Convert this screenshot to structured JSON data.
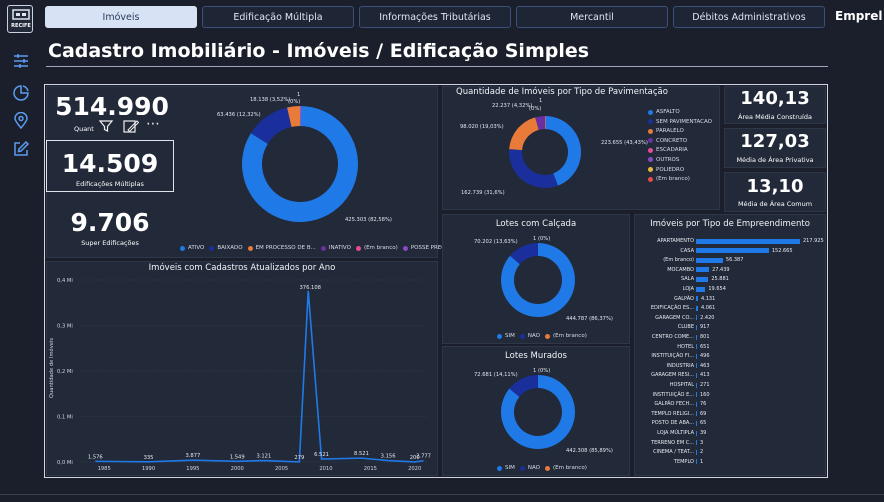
{
  "app": {
    "logo_text": "RECIFE",
    "brand": "Emprel"
  },
  "tabs": [
    {
      "label": "Imóveis"
    },
    {
      "label": "Edificação Múltipla"
    },
    {
      "label": "Informações Tributárias"
    },
    {
      "label": "Mercantil"
    },
    {
      "label": "Débitos Administrativos"
    }
  ],
  "sidebar": {
    "icons": [
      "sliders-icon",
      "pie-chart-icon",
      "map-pin-icon",
      "edit-icon"
    ]
  },
  "page": {
    "title": "Cadastro Imobiliário - Imóveis / Edificação Simples"
  },
  "cards": {
    "quant": {
      "value": "514.990",
      "label": "Quant..."
    },
    "multiplas": {
      "value": "14.509",
      "label": "Edificações Múltiplas"
    },
    "super": {
      "value": "9.706",
      "label": "Super Edificações"
    },
    "area_construida": {
      "value": "140,13",
      "label": "Área Média Construída"
    },
    "area_privativa": {
      "value": "127,03",
      "label": "Média de Área Privativa"
    },
    "area_comum": {
      "value": "13,10",
      "label": "Média de Área Comum"
    }
  },
  "toolbar": {
    "filter_icon": "filter-icon",
    "focus_icon": "focus-mode-icon",
    "more_label": "⋯"
  },
  "status_donut": {
    "labels": [
      "18.138 (3,52%)",
      "1",
      "(0%)",
      "63.436 (12,32%)",
      "425.303 (82,58%)"
    ],
    "legend": [
      {
        "label": "ATIVO",
        "color": "#1f7ae8"
      },
      {
        "label": "BAIXADO",
        "color": "#1a2f9c"
      },
      {
        "label": "EM PROCESSO DE B...",
        "color": "#e87a3a"
      },
      {
        "label": "INATIVO",
        "color": "#6b2fa0"
      },
      {
        "label": "(Em branco)",
        "color": "#e84a9c"
      },
      {
        "label": "POSSE PRECARIA",
        "color": "#8a4ac8"
      }
    ],
    "chart_data": {
      "type": "pie",
      "categories": [
        "ATIVO",
        "BAIXADO",
        "EM PROCESSO DE B...",
        "INATIVO",
        "(Em branco)",
        "POSSE PRECARIA"
      ],
      "values": [
        425303,
        63436,
        18138,
        1,
        0,
        0
      ]
    }
  },
  "pav": {
    "title": "Quantidade de Imóveis por Tipo de Pavimentação",
    "labels": [
      "22.237 (4,32%)",
      "1",
      "(0%)",
      "98.020 (19,03%)",
      "223.655 (43,43%)",
      "162.739 (31,6%)"
    ],
    "legend": [
      {
        "label": "ASFALTO",
        "color": "#1f7ae8"
      },
      {
        "label": "SEM PAVIMENTACAO",
        "color": "#1a2f9c"
      },
      {
        "label": "PARALELO",
        "color": "#e87a3a"
      },
      {
        "label": "CONCRETO",
        "color": "#6b2fa0"
      },
      {
        "label": "ESCADARIA",
        "color": "#e84a9c"
      },
      {
        "label": "OUTROS",
        "color": "#8a4ac8"
      },
      {
        "label": "POLIEDRO",
        "color": "#e8b83a"
      },
      {
        "label": "(Em branco)",
        "color": "#e84a4a"
      }
    ],
    "chart_data": {
      "type": "pie",
      "categories": [
        "ASFALTO",
        "SEM PAVIMENTACAO",
        "PARALELO",
        "CONCRETO",
        "ESCADARIA",
        "OUTROS",
        "POLIEDRO",
        "(Em branco)"
      ],
      "values": [
        223655,
        162739,
        98020,
        22237,
        1,
        0,
        0,
        0
      ]
    }
  },
  "calcada": {
    "title": "Lotes com Calçada",
    "labels": [
      "70.202 (13,63%)",
      "1 (0%)",
      "444.787 (86,37%)"
    ],
    "legend": [
      {
        "label": "SIM",
        "color": "#1f7ae8"
      },
      {
        "label": "NAO",
        "color": "#1a2f9c"
      },
      {
        "label": "(Em branco)",
        "color": "#e87a3a"
      }
    ],
    "chart_data": {
      "type": "pie",
      "categories": [
        "SIM",
        "NAO",
        "(Em branco)"
      ],
      "values": [
        444787,
        70202,
        1
      ]
    }
  },
  "murados": {
    "title": "Lotes Murados",
    "labels": [
      "72.681 (14,11%)",
      "1 (0%)",
      "442.308 (85,89%)"
    ],
    "legend": [
      {
        "label": "SIM",
        "color": "#1f7ae8"
      },
      {
        "label": "NAO",
        "color": "#1a2f9c"
      },
      {
        "label": "(Em branco)",
        "color": "#e87a3a"
      }
    ],
    "chart_data": {
      "type": "pie",
      "categories": [
        "SIM",
        "NAO",
        "(Em branco)"
      ],
      "values": [
        442308,
        72681,
        1
      ]
    }
  },
  "empreend": {
    "title": "Imóveis por Tipo de Empreendimento",
    "chart_data": {
      "type": "bar",
      "categories": [
        "APARTAMENTO",
        "CASA",
        "(Em branco)",
        "MOCAMBO",
        "SALA",
        "LOJA",
        "GALPÃO",
        "EDIFICAÇÃO ES...",
        "GARAGEM CO...",
        "CLUBE",
        "CENTRO COME...",
        "HOTEL",
        "INSTITUIÇÃO FI...",
        "INDUSTRIA",
        "GARAGEM RESI...",
        "HOSPITAL",
        "INSTITUIÇÃO E...",
        "GALPÃO FECH...",
        "TEMPLO RELIGI...",
        "POSTO DE ABA...",
        "LOJA MÚLTIPLA",
        "TERRENO EM C...",
        "CINEMA / TEAT...",
        "TEMPLO"
      ],
      "values": [
        217925,
        152665,
        56387,
        27439,
        25881,
        19654,
        4131,
        4061,
        2420,
        917,
        801,
        651,
        496,
        463,
        413,
        271,
        160,
        76,
        69,
        65,
        39,
        3,
        2,
        1
      ],
      "value_labels": [
        "217.925",
        "152.665",
        "56.387",
        "27.439",
        "25.881",
        "19.654",
        "4.131",
        "4.061",
        "2.420",
        "917",
        "801",
        "651",
        "496",
        "463",
        "413",
        "271",
        "160",
        "76",
        "69",
        "65",
        "39",
        "3",
        "2",
        "1"
      ]
    }
  },
  "timeline": {
    "title": "Imóveis com Cadastros Atualizados por Ano",
    "chart_data": {
      "type": "line",
      "ylabel": "Quantidade de Imóveis",
      "ylim": [
        0,
        400000
      ],
      "yticks": [
        "0,0 Mi",
        "0,1 Mi",
        "0,2 Mi",
        "0,3 Mi",
        "0,4 Mi"
      ],
      "xticks": [
        "1985",
        "1990",
        "1995",
        "2000",
        "2005",
        "2010",
        "2015",
        "2020"
      ],
      "points": [
        {
          "x": 1984,
          "y": 1576,
          "label": "1.576"
        },
        {
          "x": 1990,
          "y": 335,
          "label": "335"
        },
        {
          "x": 1995,
          "y": 3877,
          "label": "3.877"
        },
        {
          "x": 2000,
          "y": 1549,
          "label": "1.549"
        },
        {
          "x": 2003,
          "y": 3121,
          "label": "3.121"
        },
        {
          "x": 2007,
          "y": 279,
          "label": "279"
        },
        {
          "x": 2008,
          "y": 376108,
          "label": "376.108"
        },
        {
          "x": 2009.5,
          "y": 6521,
          "label": "6.521"
        },
        {
          "x": 2014,
          "y": 8521,
          "label": "8.521"
        },
        {
          "x": 2017,
          "y": 3156,
          "label": "3.156"
        },
        {
          "x": 2020,
          "y": 200,
          "label": "200"
        },
        {
          "x": 2021,
          "y": 2777,
          "label": "2.777"
        }
      ]
    }
  }
}
